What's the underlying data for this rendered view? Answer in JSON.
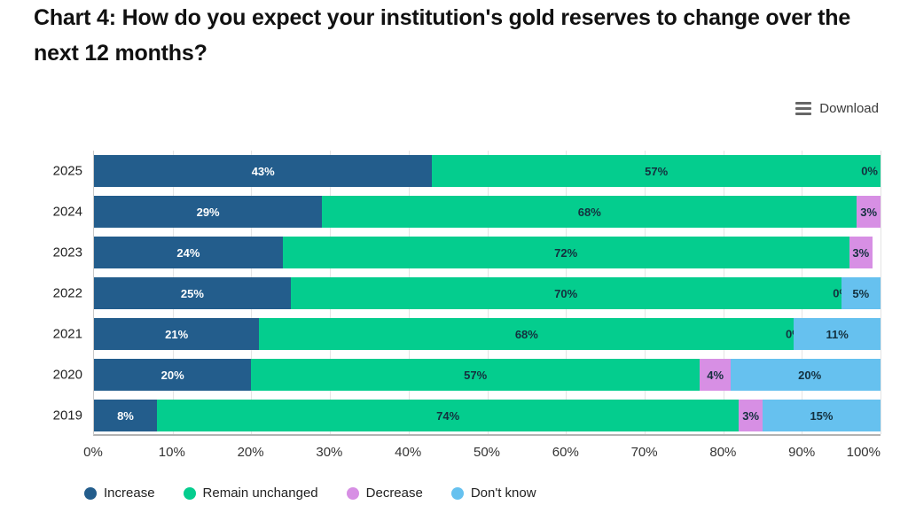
{
  "title": "Chart 4: How do you expect your institution's gold reserves to change over the next 12 months?",
  "toolbar": {
    "download_label": "Download"
  },
  "chart_data": {
    "type": "bar",
    "orientation": "horizontal",
    "stacked": true,
    "title": "Chart 4: How do you expect your institution's gold reserves to change over the next 12 months?",
    "categories": [
      "2025",
      "2024",
      "2023",
      "2022",
      "2021",
      "2020",
      "2019"
    ],
    "series": [
      {
        "name": "Increase",
        "color": "#235d8c",
        "label_color": "#ffffff",
        "values": [
          43,
          29,
          24,
          25,
          21,
          20,
          8
        ]
      },
      {
        "name": "Remain unchanged",
        "color": "#04cd8e",
        "label_color": "#14303e",
        "values": [
          57,
          68,
          72,
          70,
          68,
          57,
          74
        ]
      },
      {
        "name": "Decrease",
        "color": "#d78fe4",
        "label_color": "#14303e",
        "values": [
          0,
          3,
          3,
          0,
          0,
          4,
          3
        ]
      },
      {
        "name": "Don't know",
        "color": "#66c1ef",
        "label_color": "#14303e",
        "values": [
          0,
          0,
          0,
          5,
          11,
          20,
          15
        ]
      }
    ],
    "bar_labels": [
      [
        "43%",
        "57%",
        "",
        "0%"
      ],
      [
        "29%",
        "68%",
        "3%",
        ""
      ],
      [
        "24%",
        "72%",
        "3%",
        ""
      ],
      [
        "25%",
        "70%",
        "0%",
        "5%"
      ],
      [
        "21%",
        "68%",
        "0%",
        "11%"
      ],
      [
        "20%",
        "57%",
        "4%",
        "20%"
      ],
      [
        "8%",
        "74%",
        "3%",
        "15%"
      ]
    ],
    "xlabel": "",
    "ylabel": "",
    "xlim": [
      0,
      100
    ],
    "x_ticks": [
      "0%",
      "10%",
      "20%",
      "30%",
      "40%",
      "50%",
      "60%",
      "70%",
      "80%",
      "90%",
      "100%"
    ],
    "grid": true,
    "legend_position": "bottom"
  }
}
